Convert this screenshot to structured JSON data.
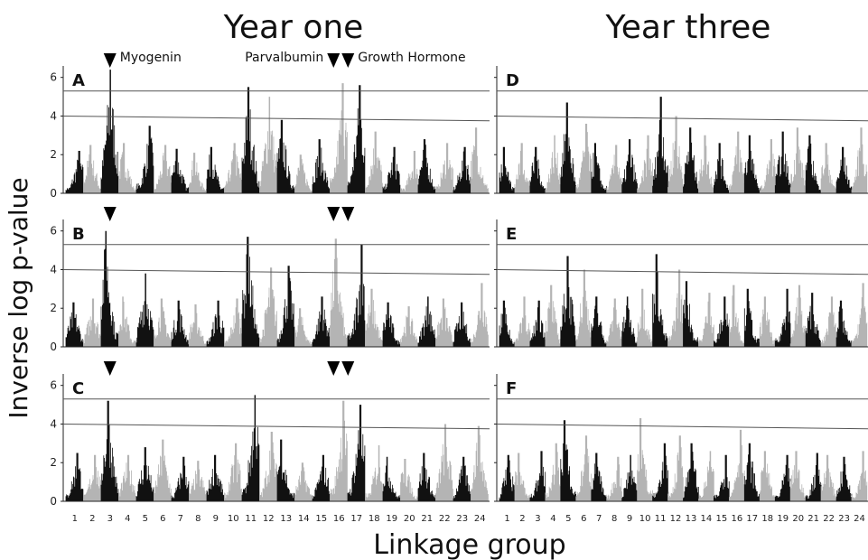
{
  "figure": {
    "col_titles": [
      "Year one",
      "Year three"
    ],
    "ylabel": "Inverse log p-value",
    "xlabel": "Linkage group",
    "genes": [
      "Myogenin",
      "Parvalbumin",
      "Growth Hormone"
    ],
    "colors": {
      "dark": "#111111",
      "light": "#b4b4b4",
      "threshold": "#555555"
    }
  },
  "chart_data": [
    {
      "type": "bar",
      "panel": "A",
      "year": "Year one",
      "ylim": [
        0,
        6.5
      ],
      "yticks": [
        0,
        2,
        4,
        6
      ],
      "thresholds": [
        5.3,
        4.0
      ],
      "linkage_groups": [
        "1",
        "2",
        "3",
        "4",
        "5",
        "6",
        "7",
        "8",
        "9",
        "10",
        "11",
        "12",
        "13",
        "14",
        "15",
        "16",
        "17",
        "18",
        "19",
        "20",
        "21",
        "22",
        "23",
        "24"
      ],
      "group_peaks": [
        2.2,
        2.5,
        6.4,
        2.6,
        3.5,
        2.5,
        2.3,
        2.1,
        2.4,
        2.6,
        5.5,
        5.0,
        3.8,
        2.0,
        2.8,
        5.7,
        5.6,
        3.2,
        2.4,
        2.2,
        2.8,
        2.6,
        2.4,
        3.4
      ],
      "markers": [
        {
          "gene": "Myogenin",
          "group": "3"
        },
        {
          "gene": "Parvalbumin",
          "group": "16"
        },
        {
          "gene": "Growth Hormone",
          "group": "16"
        }
      ]
    },
    {
      "type": "bar",
      "panel": "B",
      "year": "Year one",
      "ylim": [
        0,
        6.5
      ],
      "yticks": [
        0,
        2,
        4,
        6
      ],
      "thresholds": [
        5.3,
        4.0
      ],
      "linkage_groups": [
        "1",
        "2",
        "3",
        "4",
        "5",
        "6",
        "7",
        "8",
        "9",
        "10",
        "11",
        "12",
        "13",
        "14",
        "15",
        "16",
        "17",
        "18",
        "19",
        "20",
        "21",
        "22",
        "23",
        "24"
      ],
      "group_peaks": [
        2.3,
        2.5,
        6.0,
        2.6,
        3.8,
        2.5,
        2.4,
        2.2,
        2.4,
        2.5,
        5.7,
        4.1,
        4.2,
        2.0,
        2.6,
        5.6,
        5.3,
        3.0,
        2.3,
        2.1,
        2.6,
        2.5,
        2.3,
        3.3
      ],
      "markers": [
        {
          "gene": "Myogenin",
          "group": "3"
        },
        {
          "gene": "Parvalbumin",
          "group": "16"
        },
        {
          "gene": "Growth Hormone",
          "group": "16"
        }
      ]
    },
    {
      "type": "bar",
      "panel": "C",
      "year": "Year one",
      "ylim": [
        0,
        6.5
      ],
      "yticks": [
        0,
        2,
        4,
        6
      ],
      "thresholds": [
        5.3,
        4.0
      ],
      "linkage_groups": [
        "1",
        "2",
        "3",
        "4",
        "5",
        "6",
        "7",
        "8",
        "9",
        "10",
        "11",
        "12",
        "13",
        "14",
        "15",
        "16",
        "17",
        "18",
        "19",
        "20",
        "21",
        "22",
        "23",
        "24"
      ],
      "group_peaks": [
        2.5,
        2.4,
        5.2,
        2.4,
        2.8,
        3.2,
        2.3,
        2.1,
        2.4,
        3.0,
        5.5,
        3.6,
        3.2,
        2.0,
        2.4,
        5.2,
        5.0,
        2.9,
        2.3,
        2.2,
        2.5,
        4.0,
        2.3,
        3.9
      ],
      "markers": [
        {
          "gene": "Myogenin",
          "group": "3"
        },
        {
          "gene": "Parvalbumin",
          "group": "16"
        },
        {
          "gene": "Growth Hormone",
          "group": "16"
        }
      ]
    },
    {
      "type": "bar",
      "panel": "D",
      "year": "Year three",
      "ylim": [
        0,
        6.5
      ],
      "yticks": [
        0,
        2,
        4,
        6
      ],
      "thresholds": [
        5.3,
        4.0
      ],
      "linkage_groups": [
        "1",
        "2",
        "3",
        "4",
        "5",
        "6",
        "7",
        "8",
        "9",
        "10",
        "11",
        "12",
        "13",
        "14",
        "15",
        "16",
        "17",
        "18",
        "19",
        "20",
        "21",
        "22",
        "23",
        "24"
      ],
      "group_peaks": [
        2.4,
        2.6,
        2.4,
        3.0,
        4.7,
        3.6,
        2.6,
        2.5,
        2.8,
        3.0,
        5.0,
        4.0,
        3.4,
        3.0,
        2.6,
        3.2,
        3.0,
        2.8,
        3.2,
        3.4,
        3.0,
        2.6,
        2.4,
        3.4
      ],
      "markers": []
    },
    {
      "type": "bar",
      "panel": "E",
      "year": "Year three",
      "ylim": [
        0,
        6.5
      ],
      "yticks": [
        0,
        2,
        4,
        6
      ],
      "thresholds": [
        5.3,
        4.0
      ],
      "linkage_groups": [
        "1",
        "2",
        "3",
        "4",
        "5",
        "6",
        "7",
        "8",
        "9",
        "10",
        "11",
        "12",
        "13",
        "14",
        "15",
        "16",
        "17",
        "18",
        "19",
        "20",
        "21",
        "22",
        "23",
        "24"
      ],
      "group_peaks": [
        2.4,
        2.6,
        2.4,
        3.2,
        4.7,
        4.0,
        2.6,
        2.5,
        2.6,
        3.0,
        4.8,
        4.0,
        3.4,
        2.8,
        2.6,
        3.2,
        3.0,
        2.6,
        3.0,
        3.2,
        2.8,
        2.6,
        2.4,
        3.3
      ],
      "markers": []
    },
    {
      "type": "bar",
      "panel": "F",
      "year": "Year three",
      "ylim": [
        0,
        6.5
      ],
      "yticks": [
        0,
        2,
        4,
        6
      ],
      "thresholds": [
        5.3,
        4.0
      ],
      "linkage_groups": [
        "1",
        "2",
        "3",
        "4",
        "5",
        "6",
        "7",
        "8",
        "9",
        "10",
        "11",
        "12",
        "13",
        "14",
        "15",
        "16",
        "17",
        "18",
        "19",
        "20",
        "21",
        "22",
        "23",
        "24"
      ],
      "group_peaks": [
        2.4,
        2.5,
        2.6,
        3.0,
        4.2,
        3.4,
        2.5,
        2.3,
        2.4,
        4.3,
        3.0,
        3.4,
        3.0,
        2.6,
        2.4,
        3.7,
        3.0,
        2.6,
        2.4,
        2.6,
        2.5,
        2.4,
        2.3,
        2.6
      ],
      "markers": []
    }
  ]
}
